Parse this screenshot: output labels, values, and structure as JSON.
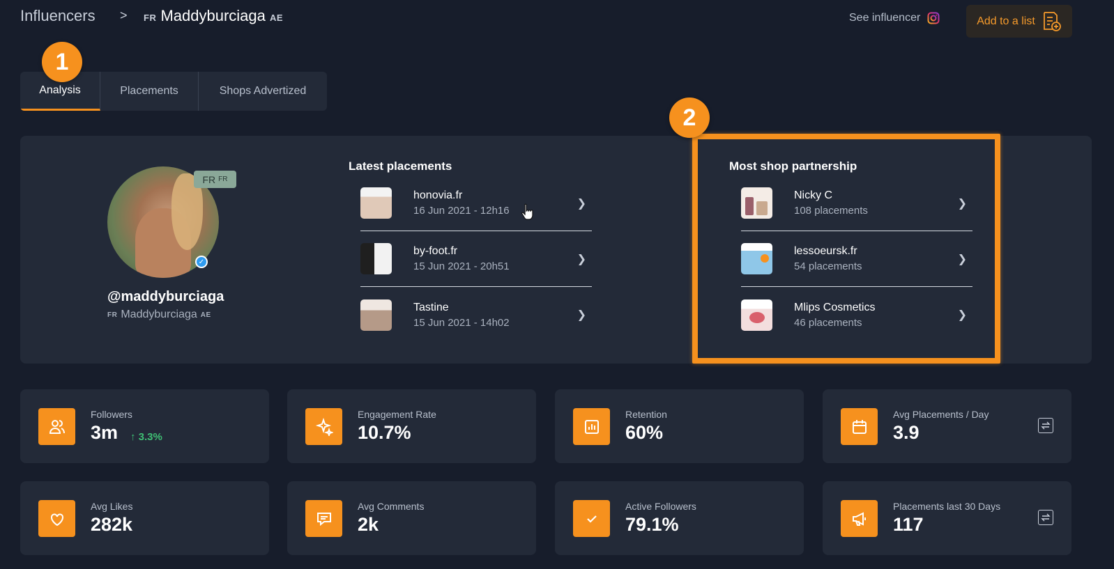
{
  "header": {
    "breadcrumb_root": "Influencers",
    "breadcrumb_sep": ">",
    "name_prefix": "FR",
    "name": "Maddyburciaga",
    "name_suffix": "AE",
    "see_influencer": "See influencer",
    "add_to_list": "Add to a list"
  },
  "badges": {
    "one": "1",
    "two": "2"
  },
  "tabs": [
    {
      "label": "Analysis"
    },
    {
      "label": "Placements"
    },
    {
      "label": "Shops Advertized"
    }
  ],
  "profile": {
    "flag_main": "FR",
    "flag_small": "FR",
    "handle": "@maddyburciaga",
    "name_prefix": "FR",
    "name": "Maddyburciaga",
    "name_suffix": "AE"
  },
  "latest_placements": {
    "title": "Latest placements",
    "items": [
      {
        "title": "honovia.fr",
        "date": "16 Jun 2021 - 12h16"
      },
      {
        "title": "by-foot.fr",
        "date": "15 Jun 2021 - 20h51"
      },
      {
        "title": "Tastine",
        "date": "15 Jun 2021 - 14h02"
      }
    ]
  },
  "shop_partnership": {
    "title": "Most shop partnership",
    "items": [
      {
        "title": "Nicky C",
        "sub": "108 placements"
      },
      {
        "title": "lessoeursk.fr",
        "sub": "54 placements"
      },
      {
        "title": "Mlips Cosmetics",
        "sub": "46 placements"
      }
    ]
  },
  "stats": [
    {
      "label": "Followers",
      "value": "3m",
      "delta": "3.3%"
    },
    {
      "label": "Engagement Rate",
      "value": "10.7%"
    },
    {
      "label": "Retention",
      "value": "60%"
    },
    {
      "label": "Avg Placements / Day",
      "value": "3.9"
    },
    {
      "label": "Avg Likes",
      "value": "282k"
    },
    {
      "label": "Avg Comments",
      "value": "2k"
    },
    {
      "label": "Active Followers",
      "value": "79.1%"
    },
    {
      "label": "Placements last 30 Days",
      "value": "117"
    }
  ],
  "colors": {
    "accent": "#f6911e",
    "bg": "#171d2b",
    "card": "#232a38",
    "positive": "#3fbf74"
  }
}
